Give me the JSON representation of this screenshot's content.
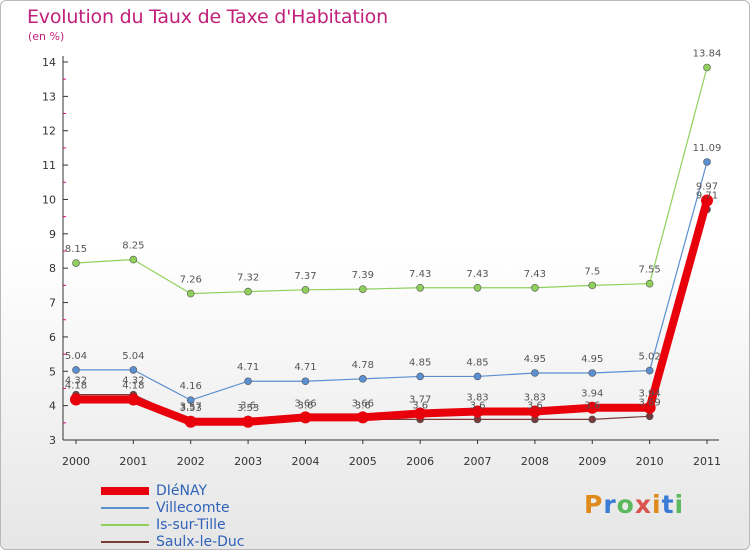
{
  "header": {
    "title": "Evolution du Taux de Taxe d'Habitation",
    "unit": "(en %)"
  },
  "logo": {
    "text": "Proxiti",
    "colors": [
      "#e08a1c",
      "#3a7bd5",
      "#5cb85c",
      "#d9534f"
    ]
  },
  "chart_data": {
    "type": "line",
    "x": [
      "2000",
      "2001",
      "2002",
      "2003",
      "2004",
      "2005",
      "2006",
      "2007",
      "2008",
      "2009",
      "2010",
      "2011"
    ],
    "ylim": [
      3,
      14
    ],
    "yticks": [
      "3",
      "4",
      "5",
      "6",
      "7",
      "8",
      "9",
      "10",
      "11",
      "12",
      "13",
      "14"
    ],
    "legend_position": "bottom-left",
    "series": [
      {
        "name": "DIéNAY",
        "color": "#e8000b",
        "width": 8,
        "values": [
          4.18,
          4.18,
          3.53,
          3.53,
          3.66,
          3.66,
          3.77,
          3.83,
          3.83,
          3.94,
          3.94,
          9.97
        ],
        "labels": [
          "4.18",
          "4.18",
          "3.53",
          "3.53",
          "3.66",
          "3.66",
          "3.77",
          "3.83",
          "3.83",
          "3.94",
          "3.94",
          "9.97"
        ]
      },
      {
        "name": "Villecomte",
        "color": "#5b8fd0",
        "width": 1.2,
        "values": [
          5.04,
          5.04,
          4.16,
          4.71,
          4.71,
          4.78,
          4.85,
          4.85,
          4.95,
          4.95,
          5.02,
          11.09
        ],
        "labels": [
          "5.04",
          "5.04",
          "4.16",
          "4.71",
          "4.71",
          "4.78",
          "4.85",
          "4.85",
          "4.95",
          "4.95",
          "5.02",
          "11.09"
        ]
      },
      {
        "name": "Is-sur-Tille",
        "color": "#8fd05c",
        "width": 1.2,
        "values": [
          8.15,
          8.25,
          7.26,
          7.32,
          7.37,
          7.39,
          7.43,
          7.43,
          7.43,
          7.5,
          7.55,
          13.84
        ],
        "labels": [
          "8.15",
          "8.25",
          "7.26",
          "7.32",
          "7.37",
          "7.39",
          "7.43",
          "7.43",
          "7.43",
          "7.5",
          "7.55",
          "13.84"
        ]
      },
      {
        "name": "Saulx-le-Duc",
        "color": "#7a3a3a",
        "width": 1.2,
        "values": [
          4.32,
          4.32,
          3.57,
          3.6,
          3.6,
          3.6,
          3.6,
          3.6,
          3.6,
          3.6,
          3.69,
          9.71
        ],
        "labels": [
          "4.32",
          "4.32",
          "3.57",
          "3.6",
          "3.6",
          "3.6",
          "3.6",
          "3.6",
          "3.6",
          "3.6",
          "3.69",
          "9.71"
        ]
      }
    ]
  }
}
